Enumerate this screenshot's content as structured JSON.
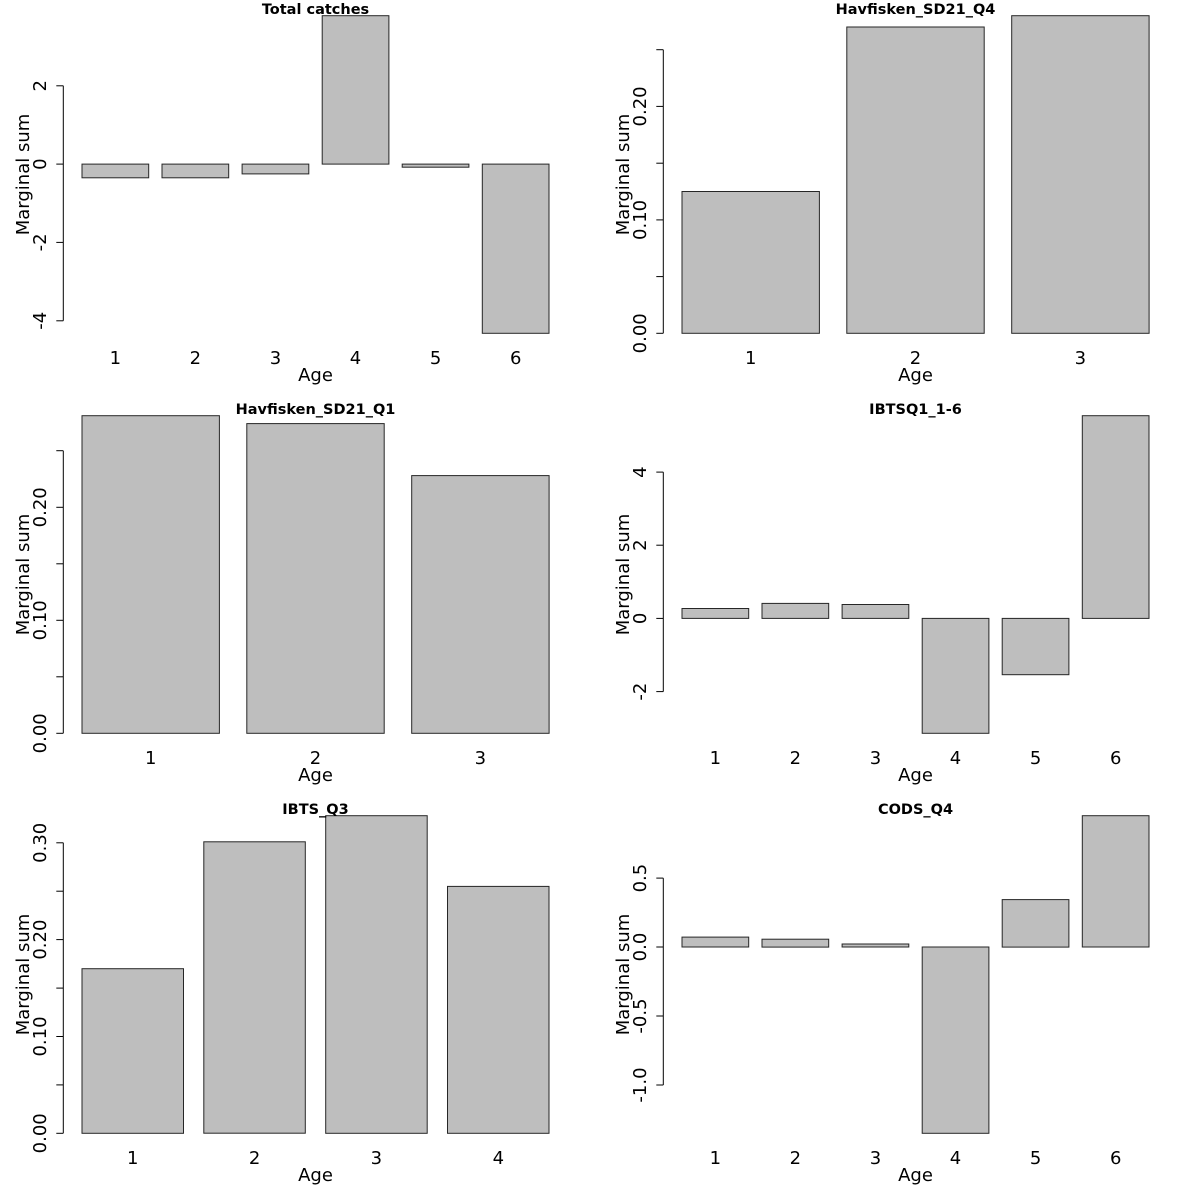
{
  "figure": {
    "layout": "3 rows x 2 columns",
    "bar_color": "#bebebe",
    "bar_border_color": "#262626"
  },
  "chart_data": [
    {
      "type": "bar",
      "title": "Total catches",
      "xlabel": "Age",
      "ylabel": "Marginal sum",
      "categories": [
        "1",
        "2",
        "3",
        "4",
        "5",
        "6"
      ],
      "values": [
        -0.35,
        -0.35,
        -0.25,
        3.79,
        -0.08,
        -4.32
      ],
      "yticks": [
        -4,
        -2,
        0,
        2
      ],
      "ytick_labels": [
        "-4",
        "-2",
        "0",
        "2"
      ],
      "grid": false
    },
    {
      "type": "bar",
      "title": "Havfisken_SD21_Q4",
      "xlabel": "Age",
      "ylabel": "Marginal sum",
      "categories": [
        "1",
        "2",
        "3"
      ],
      "values": [
        0.125,
        0.27,
        0.28
      ],
      "yticks": [
        0.0,
        0.05,
        0.1,
        0.15,
        0.2,
        0.25
      ],
      "ytick_labels": [
        "0.00",
        "",
        "0.10",
        "",
        "0.20",
        ""
      ],
      "grid": false
    },
    {
      "type": "bar",
      "title": "Havfisken_SD21_Q1",
      "xlabel": "Age",
      "ylabel": "Marginal sum",
      "categories": [
        "1",
        "2",
        "3"
      ],
      "values": [
        0.281,
        0.274,
        0.228
      ],
      "yticks": [
        0.0,
        0.05,
        0.1,
        0.15,
        0.2,
        0.25
      ],
      "ytick_labels": [
        "0.00",
        "",
        "0.10",
        "",
        "0.20",
        ""
      ],
      "grid": false
    },
    {
      "type": "bar",
      "title": "IBTSQ1_1-6",
      "xlabel": "Age",
      "ylabel": "Marginal sum",
      "categories": [
        "1",
        "2",
        "3",
        "4",
        "5",
        "6"
      ],
      "values": [
        0.27,
        0.41,
        0.38,
        -3.14,
        -1.54,
        5.54
      ],
      "yticks": [
        -2,
        0,
        2,
        4
      ],
      "ytick_labels": [
        "-2",
        "0",
        "2",
        "4"
      ],
      "grid": false
    },
    {
      "type": "bar",
      "title": "IBTS_Q3",
      "xlabel": "Age",
      "ylabel": "Marginal sum",
      "categories": [
        "1",
        "2",
        "3",
        "4"
      ],
      "values": [
        0.17,
        0.301,
        0.328,
        0.255
      ],
      "yticks": [
        0.0,
        0.05,
        0.1,
        0.15,
        0.2,
        0.25,
        0.3
      ],
      "ytick_labels": [
        "0.00",
        "",
        "0.10",
        "",
        "0.20",
        "",
        "0.30"
      ],
      "grid": false
    },
    {
      "type": "bar",
      "title": "CODS_Q4",
      "xlabel": "Age",
      "ylabel": "Marginal sum",
      "categories": [
        "1",
        "2",
        "3",
        "4",
        "5",
        "6"
      ],
      "values": [
        0.072,
        0.057,
        0.022,
        -1.35,
        0.344,
        0.952
      ],
      "yticks": [
        -1.0,
        -0.5,
        0.0,
        0.5
      ],
      "ytick_labels": [
        "-1.0",
        "-0.5",
        "0.0",
        "0.5"
      ],
      "grid": false
    }
  ]
}
